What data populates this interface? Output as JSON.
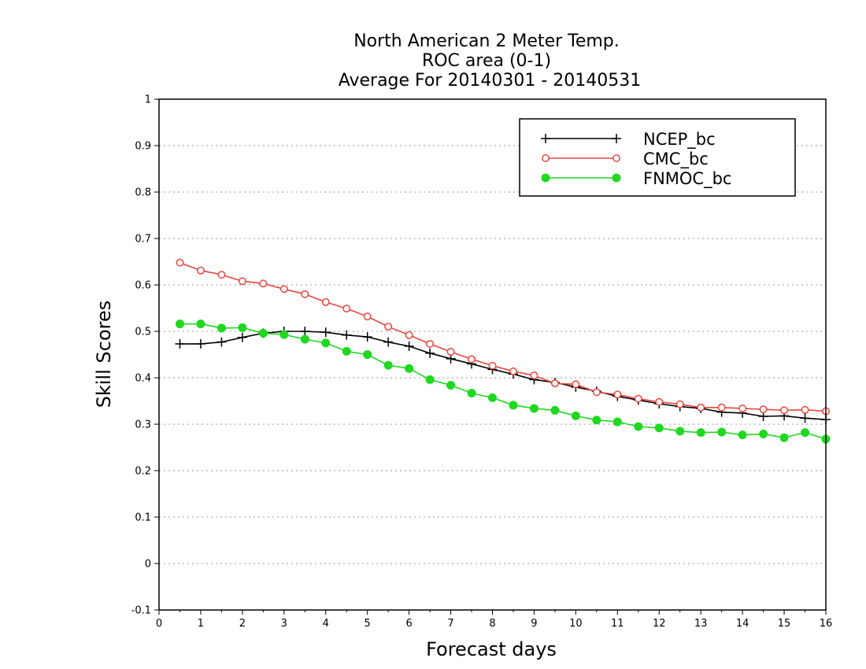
{
  "chart_data": {
    "type": "line",
    "title": [
      "North American 2 Meter Temp.",
      "ROC area (0-1)",
      "Average For 20140301 - 20140531"
    ],
    "xlabel": "Forecast days",
    "ylabel": "Skill Scores",
    "xlim": [
      0,
      16
    ],
    "ylim": [
      -0.1,
      1
    ],
    "xticks": [
      0,
      1,
      2,
      3,
      4,
      5,
      6,
      7,
      8,
      9,
      10,
      11,
      12,
      13,
      14,
      15,
      16
    ],
    "yticks": [
      -0.1,
      0,
      0.1,
      0.2,
      0.3,
      0.4,
      0.5,
      0.6,
      0.7,
      0.8,
      0.9,
      1
    ],
    "ytick_labels": [
      "-0.1",
      "0",
      "0.1",
      "0.2",
      "0.3",
      "0.4",
      "0.5",
      "0.6",
      "0.7",
      "0.8",
      "0.9",
      "1"
    ],
    "grid": "horizontal-dotted",
    "legend_position": "top-right",
    "x": [
      0.5,
      1,
      1.5,
      2,
      2.5,
      3,
      3.5,
      4,
      4.5,
      5,
      5.5,
      6,
      6.5,
      7,
      7.5,
      8,
      8.5,
      9,
      9.5,
      10,
      10.5,
      11,
      11.5,
      12,
      12.5,
      13,
      13.5,
      14,
      14.5,
      15,
      15.5,
      16
    ],
    "series": [
      {
        "name": "NCEP_bc",
        "color": "#000000",
        "marker": "plus",
        "values": [
          0.473,
          0.473,
          0.477,
          0.487,
          0.496,
          0.5,
          0.5,
          0.498,
          0.492,
          0.488,
          0.477,
          0.468,
          0.453,
          0.441,
          0.43,
          0.418,
          0.408,
          0.396,
          0.39,
          0.38,
          0.371,
          0.36,
          0.352,
          0.344,
          0.338,
          0.334,
          0.326,
          0.324,
          0.317,
          0.318,
          0.313,
          0.31
        ]
      },
      {
        "name": "CMC_bc",
        "color": "#e8473f",
        "marker": "open-circle",
        "values": [
          0.648,
          0.631,
          0.622,
          0.608,
          0.603,
          0.591,
          0.58,
          0.563,
          0.549,
          0.532,
          0.51,
          0.492,
          0.473,
          0.456,
          0.44,
          0.426,
          0.414,
          0.405,
          0.388,
          0.386,
          0.369,
          0.364,
          0.355,
          0.348,
          0.343,
          0.336,
          0.336,
          0.334,
          0.332,
          0.33,
          0.331,
          0.328
        ]
      },
      {
        "name": "FNMOC_bc",
        "color": "#1fd81f",
        "marker": "filled-circle",
        "values": [
          0.516,
          0.516,
          0.507,
          0.508,
          0.496,
          0.493,
          0.483,
          0.475,
          0.457,
          0.45,
          0.427,
          0.42,
          0.396,
          0.384,
          0.367,
          0.357,
          0.341,
          0.334,
          0.33,
          0.318,
          0.309,
          0.305,
          0.295,
          0.292,
          0.285,
          0.282,
          0.283,
          0.277,
          0.279,
          0.271,
          0.282,
          0.268
        ]
      }
    ]
  }
}
